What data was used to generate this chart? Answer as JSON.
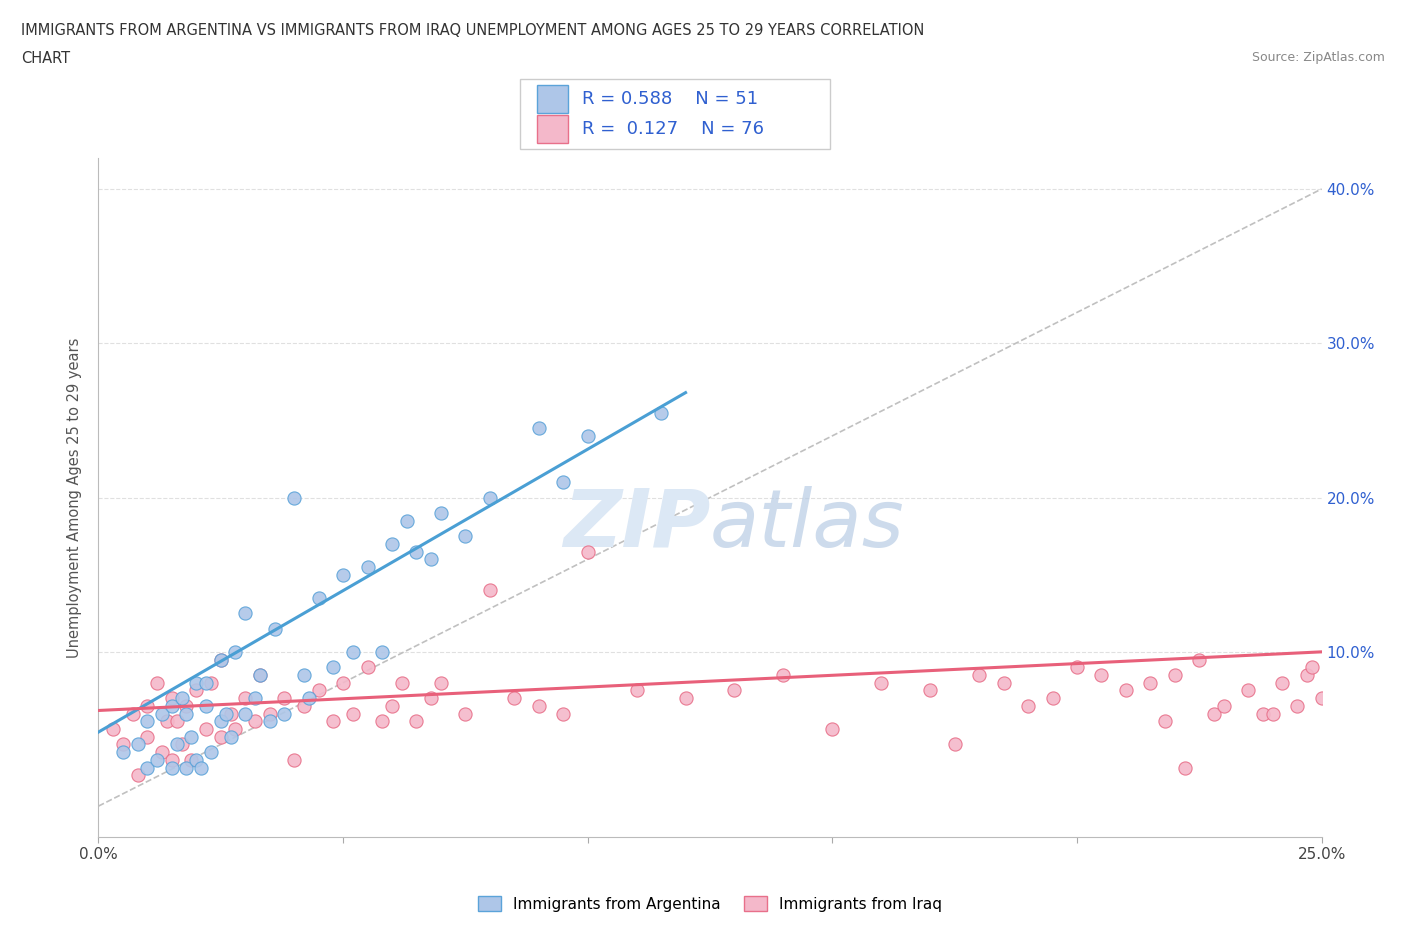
{
  "title_line1": "IMMIGRANTS FROM ARGENTINA VS IMMIGRANTS FROM IRAQ UNEMPLOYMENT AMONG AGES 25 TO 29 YEARS CORRELATION",
  "title_line2": "CHART",
  "source": "Source: ZipAtlas.com",
  "ylabel": "Unemployment Among Ages 25 to 29 years",
  "xlim": [
    0.0,
    0.25
  ],
  "ylim": [
    -0.02,
    0.42
  ],
  "xticks": [
    0.0,
    0.05,
    0.1,
    0.15,
    0.2,
    0.25
  ],
  "xtick_labels": [
    "0.0%",
    "",
    "",
    "",
    "",
    "25.0%"
  ],
  "yticks": [
    0.0,
    0.1,
    0.2,
    0.3,
    0.4
  ],
  "ytick_labels": [
    "",
    "10.0%",
    "20.0%",
    "30.0%",
    "40.0%"
  ],
  "argentina_fill": "#aec6e8",
  "argentina_edge": "#5ba3d9",
  "iraq_fill": "#f4b8ca",
  "iraq_edge": "#e8708a",
  "argentina_line_color": "#4a9fd4",
  "iraq_line_color": "#e8607a",
  "ref_line_color": "#c0c0c0",
  "R_argentina": 0.588,
  "N_argentina": 51,
  "R_iraq": 0.127,
  "N_iraq": 76,
  "legend_text_color": "#3060d0",
  "watermark_color": "#dce8f5",
  "argentina_trend_x0": 0.0,
  "argentina_trend_y0": 0.048,
  "argentina_trend_x1": 0.12,
  "argentina_trend_y1": 0.268,
  "iraq_trend_x0": 0.0,
  "iraq_trend_y0": 0.062,
  "iraq_trend_x1": 0.25,
  "iraq_trend_y1": 0.1,
  "argentina_scatter_x": [
    0.005,
    0.008,
    0.01,
    0.01,
    0.012,
    0.013,
    0.015,
    0.015,
    0.016,
    0.017,
    0.018,
    0.018,
    0.019,
    0.02,
    0.02,
    0.021,
    0.022,
    0.022,
    0.023,
    0.025,
    0.025,
    0.026,
    0.027,
    0.028,
    0.03,
    0.03,
    0.032,
    0.033,
    0.035,
    0.036,
    0.038,
    0.04,
    0.042,
    0.043,
    0.045,
    0.048,
    0.05,
    0.052,
    0.055,
    0.058,
    0.06,
    0.063,
    0.065,
    0.068,
    0.07,
    0.075,
    0.08,
    0.09,
    0.095,
    0.1,
    0.115
  ],
  "argentina_scatter_y": [
    0.035,
    0.04,
    0.025,
    0.055,
    0.03,
    0.06,
    0.025,
    0.065,
    0.04,
    0.07,
    0.025,
    0.06,
    0.045,
    0.03,
    0.08,
    0.025,
    0.065,
    0.08,
    0.035,
    0.055,
    0.095,
    0.06,
    0.045,
    0.1,
    0.06,
    0.125,
    0.07,
    0.085,
    0.055,
    0.115,
    0.06,
    0.2,
    0.085,
    0.07,
    0.135,
    0.09,
    0.15,
    0.1,
    0.155,
    0.1,
    0.17,
    0.185,
    0.165,
    0.16,
    0.19,
    0.175,
    0.2,
    0.245,
    0.21,
    0.24,
    0.255
  ],
  "iraq_scatter_x": [
    0.003,
    0.005,
    0.007,
    0.008,
    0.01,
    0.01,
    0.012,
    0.013,
    0.014,
    0.015,
    0.015,
    0.016,
    0.017,
    0.018,
    0.019,
    0.02,
    0.022,
    0.023,
    0.025,
    0.025,
    0.027,
    0.028,
    0.03,
    0.032,
    0.033,
    0.035,
    0.038,
    0.04,
    0.042,
    0.045,
    0.048,
    0.05,
    0.052,
    0.055,
    0.058,
    0.06,
    0.062,
    0.065,
    0.068,
    0.07,
    0.075,
    0.08,
    0.085,
    0.09,
    0.095,
    0.1,
    0.11,
    0.12,
    0.13,
    0.14,
    0.15,
    0.16,
    0.17,
    0.175,
    0.18,
    0.185,
    0.19,
    0.195,
    0.2,
    0.205,
    0.21,
    0.215,
    0.218,
    0.22,
    0.222,
    0.225,
    0.228,
    0.23,
    0.235,
    0.238,
    0.24,
    0.242,
    0.245,
    0.247,
    0.248,
    0.25
  ],
  "iraq_scatter_y": [
    0.05,
    0.04,
    0.06,
    0.02,
    0.045,
    0.065,
    0.08,
    0.035,
    0.055,
    0.03,
    0.07,
    0.055,
    0.04,
    0.065,
    0.03,
    0.075,
    0.05,
    0.08,
    0.045,
    0.095,
    0.06,
    0.05,
    0.07,
    0.055,
    0.085,
    0.06,
    0.07,
    0.03,
    0.065,
    0.075,
    0.055,
    0.08,
    0.06,
    0.09,
    0.055,
    0.065,
    0.08,
    0.055,
    0.07,
    0.08,
    0.06,
    0.14,
    0.07,
    0.065,
    0.06,
    0.165,
    0.075,
    0.07,
    0.075,
    0.085,
    0.05,
    0.08,
    0.075,
    0.04,
    0.085,
    0.08,
    0.065,
    0.07,
    0.09,
    0.085,
    0.075,
    0.08,
    0.055,
    0.085,
    0.025,
    0.095,
    0.06,
    0.065,
    0.075,
    0.06,
    0.06,
    0.08,
    0.065,
    0.085,
    0.09,
    0.07
  ]
}
